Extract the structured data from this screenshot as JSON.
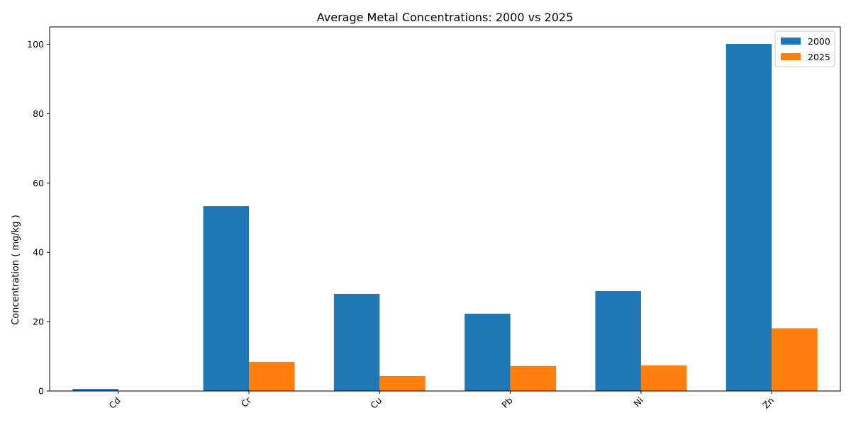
{
  "chart_data": {
    "type": "bar",
    "title": "Average Metal Concentrations: 2000 vs 2025",
    "xlabel": "",
    "ylabel": "Concentration ( mg/kg )",
    "categories": [
      "Cd",
      "Cr",
      "Cu",
      "Pb",
      "Ni",
      "Zn"
    ],
    "series": [
      {
        "name": "2000",
        "color": "#1f77b4",
        "values": [
          0.6,
          53.3,
          28.0,
          22.3,
          28.8,
          100.1
        ]
      },
      {
        "name": "2025",
        "color": "#ff7f0e",
        "values": [
          0.0,
          8.4,
          4.3,
          7.2,
          7.4,
          18.1
        ]
      }
    ],
    "ylim": [
      0,
      105
    ],
    "yticks": [
      0,
      20,
      40,
      60,
      80,
      100
    ],
    "grid": false,
    "legend_position": "top-right",
    "xtick_rotation": 45
  }
}
